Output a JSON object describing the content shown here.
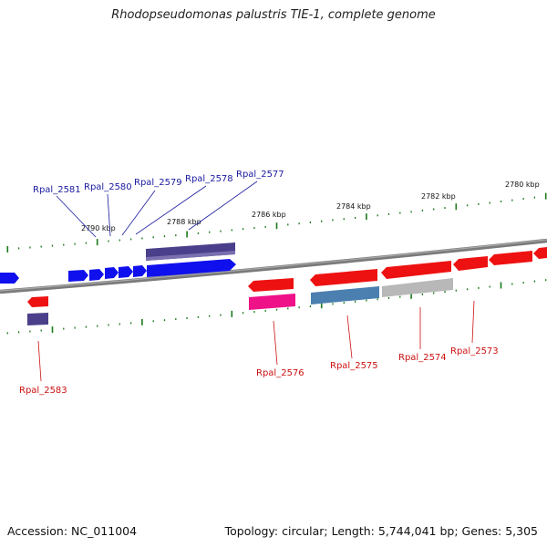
{
  "title": "Rhodopseudomonas palustris TIE-1, complete genome",
  "footer": {
    "accession": "Accession: NC_011004",
    "topology": "Topology: circular; Length: 5,744,041 bp; Genes: 5,305"
  },
  "colors": {
    "backbone": "#808080",
    "tick": "#1a7a1a",
    "forward_label": "#1a1aa0",
    "reverse_label": "#cc1111",
    "forward_gene": "#1010ee",
    "reverse_gene": "#ee1111",
    "rna_gene": "#ee1188",
    "pseudo_gene": "#4a3f8a",
    "steel_gene": "#4a7fb0",
    "grey_gene": "#b8b8b8"
  },
  "scale": {
    "upper_labels": [
      "2790 kbp",
      "2788 kbp",
      "2786 kbp",
      "2784 kbp",
      "2782 kbp",
      "2780 kbp"
    ]
  },
  "genes": {
    "upper": [
      "Rpal_2581",
      "Rpal_2580",
      "Rpal_2579",
      "Rpal_2578",
      "Rpal_2577"
    ],
    "lower": [
      "Rpal_2583",
      "Rpal_2576",
      "Rpal_2575",
      "Rpal_2574",
      "Rpal_2573"
    ]
  }
}
